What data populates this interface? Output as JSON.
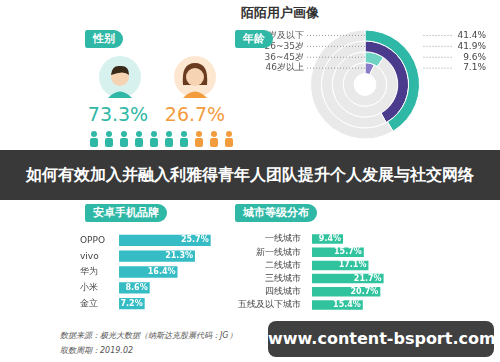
{
  "title": "陌陌用户画像",
  "banner": "如何有效加入并融入利雅得青年人团队提升个人发展与社交网络",
  "source": "数据来源：极光大数据（纳斯达克股票代码：JG）",
  "period": "取数周期：2019.02",
  "watermark": "www.content-bsport.com",
  "chart_data": [
    {
      "type": "pictogram",
      "title": "性别",
      "values": [
        73.3,
        26.7
      ],
      "value_labels": [
        "73.3%",
        "26.7%"
      ],
      "colors": [
        "#2fb8a6",
        "#f39c3d"
      ]
    },
    {
      "type": "radial_bar",
      "title": "年龄",
      "categories": [
        "25岁及以下",
        "26~35岁",
        "36~45岁",
        "46岁以上"
      ],
      "values": [
        41.4,
        41.9,
        9.6,
        7.1
      ],
      "value_labels": [
        "41.4%",
        "41.9%",
        "9.6%",
        "7.1%"
      ],
      "colors": [
        "#2fb8a6",
        "#4a3b8c",
        "#6fd3c4",
        "#8a7bc8"
      ],
      "ylim": [
        0,
        100
      ]
    },
    {
      "type": "bar",
      "title": "安卓手机品牌",
      "orientation": "horizontal",
      "categories": [
        "OPPO",
        "vivo",
        "华为",
        "小米",
        "金立"
      ],
      "values": [
        25.7,
        21.3,
        16.4,
        8.6,
        7.2
      ],
      "value_labels": [
        "25.7%",
        "21.3%",
        "16.4%",
        "8.6%",
        "7.2%"
      ],
      "data_labels": true,
      "color": "#35bcc4",
      "xlim": [
        0,
        30
      ],
      "grid": false,
      "tick_labels": "y"
    },
    {
      "type": "bar",
      "title": "城市等级分布",
      "orientation": "horizontal",
      "categories": [
        "一线城市",
        "新一线城市",
        "二线城市",
        "三线城市",
        "四线城市",
        "五线及以下城市"
      ],
      "values": [
        9.4,
        15.7,
        17.1,
        21.7,
        20.7,
        15.4
      ],
      "value_labels": [
        "9.4%",
        "15.7%",
        "17.1%",
        "21.7%",
        "20.7%",
        "15.4%"
      ],
      "data_labels": true,
      "color": "#30c39e",
      "xlim": [
        0,
        30
      ],
      "grid": false,
      "tick_labels": "y"
    }
  ]
}
